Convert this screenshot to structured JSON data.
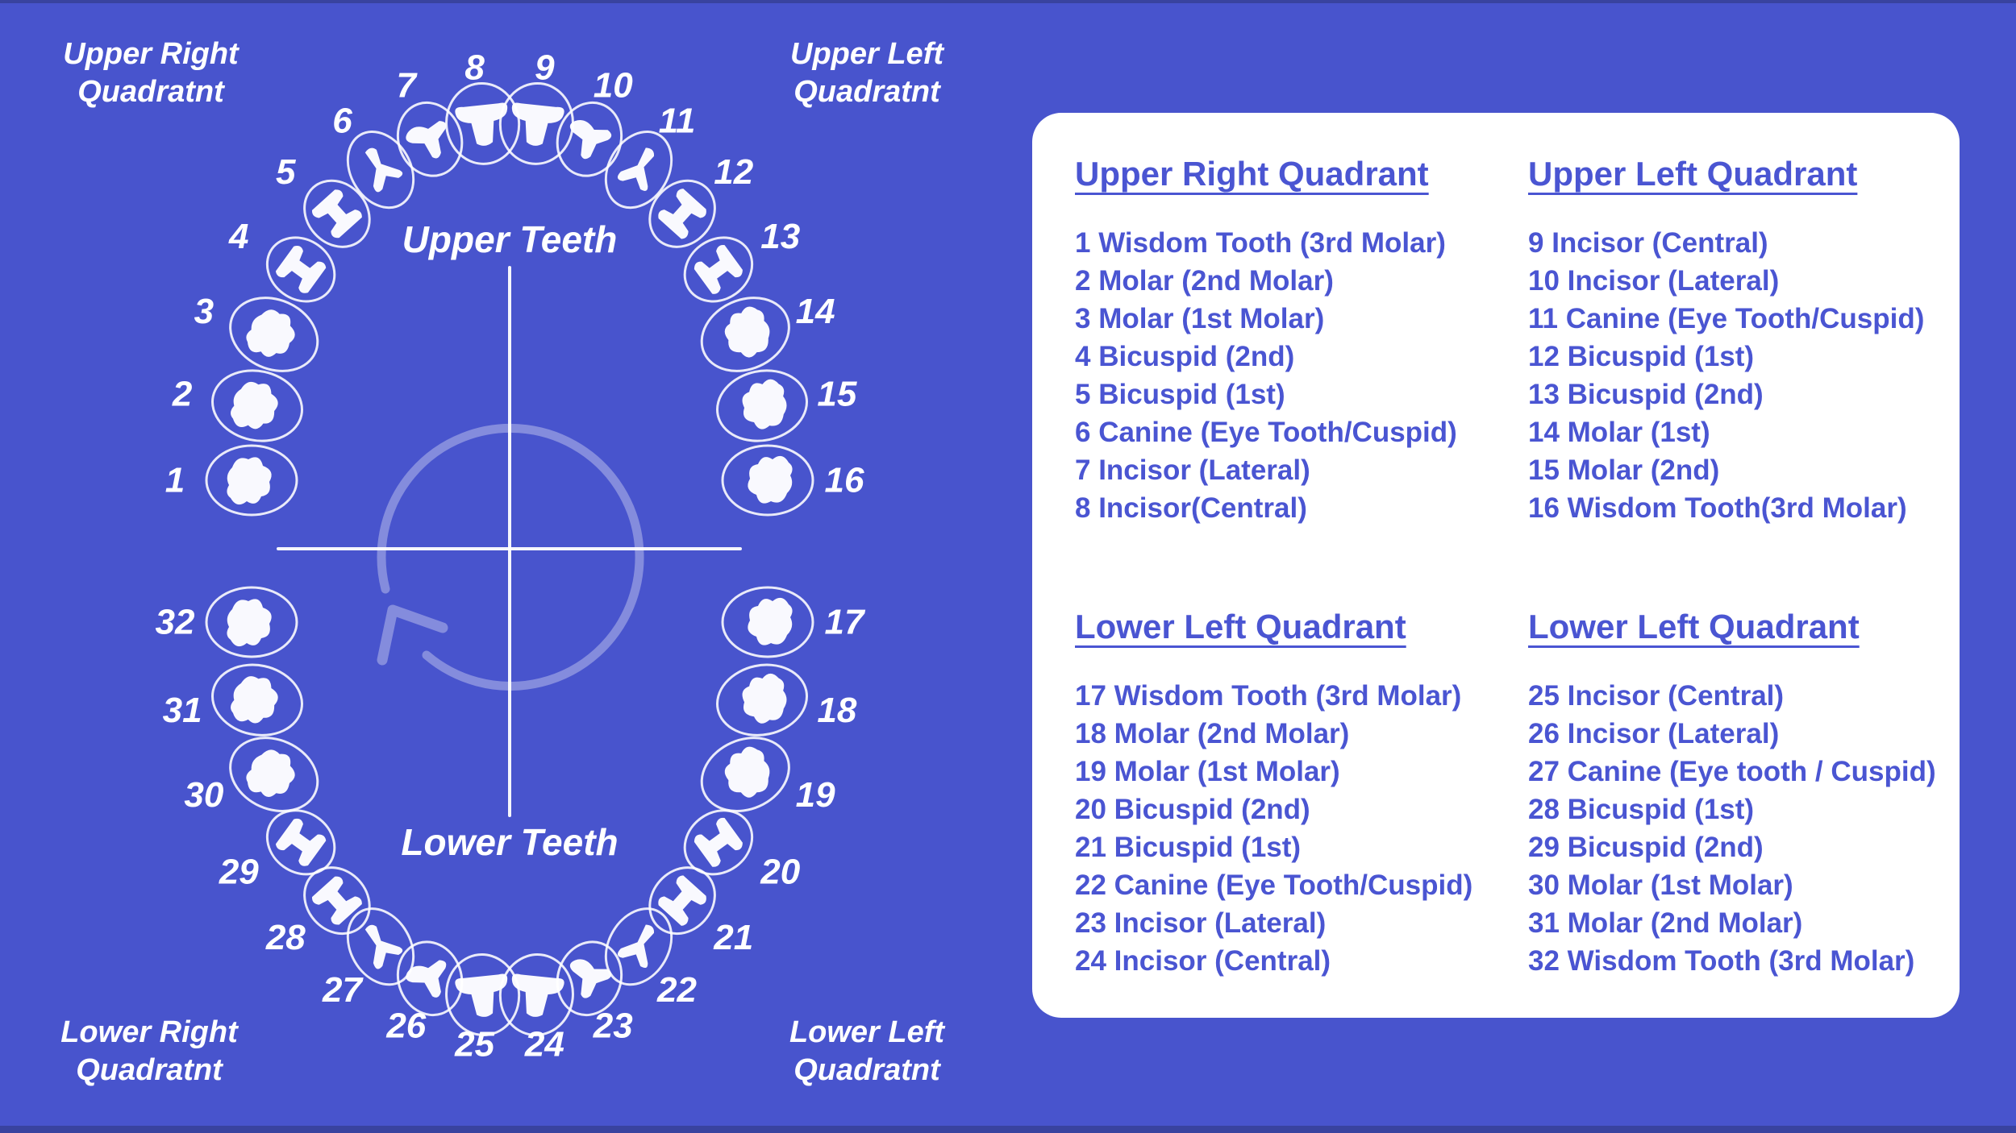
{
  "colors": {
    "background": "#4854cd",
    "edge": "#39439f",
    "panel": "#ffffff",
    "panel_text": "#4a55d2",
    "diagram_text": "#ffffff",
    "rotation_arrow": "rgba(255,255,255,0.33)"
  },
  "diagram": {
    "corner_labels": {
      "upper_right": "Upper Right\nQuadratnt",
      "upper_left": "Upper Left\nQuadratnt",
      "lower_right": "Lower Right\nQuadratnt",
      "lower_left": "Lower Left\nQuadratnt"
    },
    "center_labels": {
      "upper": "Upper Teeth",
      "lower": "Lower Teeth"
    },
    "upper_teeth": [
      {
        "num": 1,
        "type": "molar"
      },
      {
        "num": 2,
        "type": "molar"
      },
      {
        "num": 3,
        "type": "molar"
      },
      {
        "num": 4,
        "type": "bicuspid"
      },
      {
        "num": 5,
        "type": "bicuspid"
      },
      {
        "num": 6,
        "type": "canine"
      },
      {
        "num": 7,
        "type": "lateral"
      },
      {
        "num": 8,
        "type": "central"
      },
      {
        "num": 9,
        "type": "central"
      },
      {
        "num": 10,
        "type": "lateral"
      },
      {
        "num": 11,
        "type": "canine"
      },
      {
        "num": 12,
        "type": "bicuspid"
      },
      {
        "num": 13,
        "type": "bicuspid"
      },
      {
        "num": 14,
        "type": "molar"
      },
      {
        "num": 15,
        "type": "molar"
      },
      {
        "num": 16,
        "type": "molar"
      }
    ],
    "lower_teeth": [
      {
        "num": 17,
        "type": "molar"
      },
      {
        "num": 18,
        "type": "molar"
      },
      {
        "num": 19,
        "type": "molar"
      },
      {
        "num": 20,
        "type": "bicuspid"
      },
      {
        "num": 21,
        "type": "bicuspid"
      },
      {
        "num": 22,
        "type": "canine"
      },
      {
        "num": 23,
        "type": "lateral"
      },
      {
        "num": 24,
        "type": "central"
      },
      {
        "num": 25,
        "type": "central"
      },
      {
        "num": 26,
        "type": "lateral"
      },
      {
        "num": 27,
        "type": "canine"
      },
      {
        "num": 28,
        "type": "bicuspid"
      },
      {
        "num": 29,
        "type": "bicuspid"
      },
      {
        "num": 30,
        "type": "molar"
      },
      {
        "num": 31,
        "type": "molar"
      },
      {
        "num": 32,
        "type": "molar"
      }
    ]
  },
  "panel": {
    "sections": [
      {
        "title": "Upper Right Quadrant",
        "items": [
          "1 Wisdom Tooth (3rd Molar)",
          "2 Molar (2nd Molar)",
          "3 Molar (1st Molar)",
          "4 Bicuspid (2nd)",
          "5 Bicuspid (1st)",
          "6 Canine (Eye Tooth/Cuspid)",
          "7 Incisor (Lateral)",
          "8 Incisor(Central)"
        ]
      },
      {
        "title": "Upper Left Quadrant",
        "items": [
          "9 Incisor (Central)",
          "10 Incisor (Lateral)",
          "11 Canine (Eye Tooth/Cuspid)",
          "12 Bicuspid (1st)",
          "13 Bicuspid (2nd)",
          "14 Molar (1st)",
          "15 Molar (2nd)",
          "16 Wisdom Tooth(3rd Molar)"
        ]
      },
      {
        "title": "Lower Left Quadrant",
        "items": [
          "17 Wisdom Tooth (3rd Molar)",
          "18 Molar (2nd Molar)",
          "19 Molar (1st Molar)",
          "20 Bicuspid (2nd)",
          "21 Bicuspid (1st)",
          "22 Canine (Eye Tooth/Cuspid)",
          "23 Incisor (Lateral)",
          "24 Incisor (Central)"
        ]
      },
      {
        "title": "Lower Left Quadrant",
        "items": [
          "25 Incisor (Central)",
          "26 Incisor (Lateral)",
          "27 Canine (Eye tooth / Cuspid)",
          "28 Bicuspid (1st)",
          "29 Bicuspid (2nd)",
          "30 Molar (1st Molar)",
          "31 Molar (2nd Molar)",
          "32 Wisdom Tooth (3rd Molar)"
        ]
      }
    ]
  }
}
